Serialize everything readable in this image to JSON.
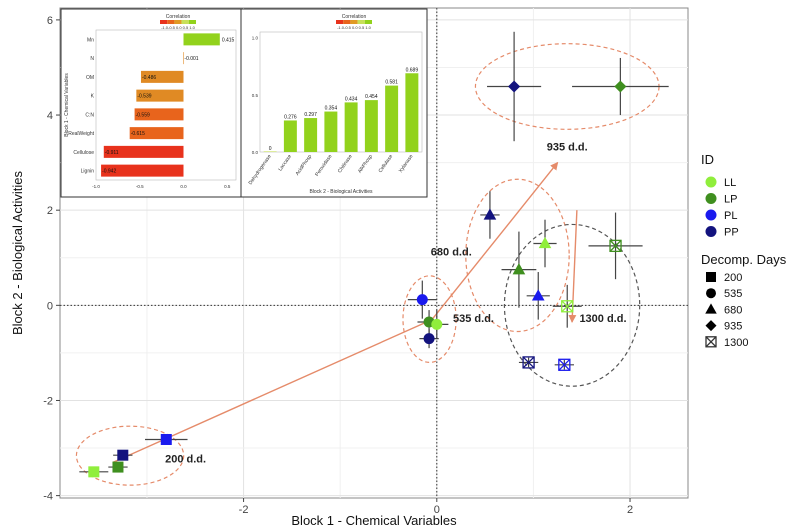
{
  "chart_data": {
    "type": "scatter",
    "xlabel": "Block 1 - Chemical Variables",
    "ylabel": "Block 2 - Biological Activities",
    "xlim": [
      -3.9,
      2.6
    ],
    "ylim": [
      -4.05,
      6.25
    ],
    "x_ticks": [
      -2,
      0,
      2
    ],
    "y_ticks": [
      -4,
      -2,
      0,
      2,
      4,
      6
    ],
    "grid": true,
    "reference_lines": {
      "x": 0,
      "y": 0
    },
    "colors": {
      "LL": "#90ee3c",
      "LP": "#3f8f1f",
      "PL": "#1a1aee",
      "PP": "#13137e",
      "trajectory": "#e58b6a",
      "panel_bg": "#ffffff",
      "frame": "#888888"
    },
    "legend": {
      "position": "right",
      "id_title": "ID",
      "id_entries": [
        "LL",
        "LP",
        "PL",
        "PP"
      ],
      "shape_title": "Decomp. Days",
      "shape_entries": [
        {
          "label": "200",
          "marker": "square"
        },
        {
          "label": "535",
          "marker": "circle"
        },
        {
          "label": "680",
          "marker": "triangle"
        },
        {
          "label": "935",
          "marker": "diamond"
        },
        {
          "label": "1300",
          "marker": "boxed-x"
        }
      ]
    },
    "points": [
      {
        "id": "LL",
        "day": "200",
        "x": -3.55,
        "y": -3.5,
        "xerr": 0.15,
        "yerr": 0.06
      },
      {
        "id": "LP",
        "day": "200",
        "x": -3.3,
        "y": -3.4,
        "xerr": 0.1,
        "yerr": 0.06
      },
      {
        "id": "PP",
        "day": "200",
        "x": -3.25,
        "y": -3.15,
        "xerr": 0.1,
        "yerr": 0.06
      },
      {
        "id": "PL",
        "day": "200",
        "x": -2.8,
        "y": -2.82,
        "xerr": 0.22,
        "yerr": 0.06
      },
      {
        "id": "PL",
        "day": "535",
        "x": -0.15,
        "y": 0.12,
        "xerr": 0.15,
        "yerr": 0.4
      },
      {
        "id": "LP",
        "day": "535",
        "x": -0.08,
        "y": -0.35,
        "xerr": 0.12,
        "yerr": 0.25
      },
      {
        "id": "LL",
        "day": "535",
        "x": 0.0,
        "y": -0.4,
        "xerr": 0.12,
        "yerr": 0.3
      },
      {
        "id": "PP",
        "day": "535",
        "x": -0.08,
        "y": -0.7,
        "xerr": 0.1,
        "yerr": 0.2
      },
      {
        "id": "PP",
        "day": "680",
        "x": 0.55,
        "y": 1.9,
        "xerr": 0.1,
        "yerr": 0.5
      },
      {
        "id": "LP",
        "day": "680",
        "x": 0.85,
        "y": 0.75,
        "xerr": 0.18,
        "yerr": 0.8
      },
      {
        "id": "LL",
        "day": "680",
        "x": 1.12,
        "y": 1.3,
        "xerr": 0.12,
        "yerr": 0.5
      },
      {
        "id": "PL",
        "day": "680",
        "x": 1.05,
        "y": 0.2,
        "xerr": 0.12,
        "yerr": 0.5
      },
      {
        "id": "PP",
        "day": "935",
        "x": 0.8,
        "y": 4.6,
        "xerr": 0.28,
        "yerr": 1.15
      },
      {
        "id": "LP",
        "day": "935",
        "x": 1.9,
        "y": 4.6,
        "xerr": 0.5,
        "yerr": 0.6
      },
      {
        "id": "LL",
        "day": "1300",
        "x": 1.35,
        "y": -0.02,
        "xerr": 0.15,
        "yerr": 0.45
      },
      {
        "id": "LP",
        "day": "1300",
        "x": 1.85,
        "y": 1.25,
        "xerr": 0.28,
        "yerr": 0.7
      },
      {
        "id": "PL",
        "day": "1300",
        "x": 1.32,
        "y": -1.25,
        "xerr": 0.1,
        "yerr": 0.1
      },
      {
        "id": "PP",
        "day": "1300",
        "x": 0.95,
        "y": -1.2,
        "xerr": 0.1,
        "yerr": 0.1
      }
    ],
    "trajectory": [
      {
        "from": [
          -3.35,
          -3.3
        ],
        "to": [
          -0.05,
          -0.3
        ]
      },
      {
        "from": [
          -0.05,
          -0.3
        ],
        "to": [
          1.25,
          3.0
        ]
      },
      {
        "from": [
          1.45,
          2.0
        ],
        "to": [
          1.4,
          -0.35
        ]
      }
    ],
    "group_labels": [
      {
        "text": "200 d.d.",
        "x": -2.6,
        "y": -3.3
      },
      {
        "text": "535 d.d.",
        "x": 0.38,
        "y": -0.35
      },
      {
        "text": "680 d.d.",
        "x": 0.15,
        "y": 1.05
      },
      {
        "text": "935 d.d.",
        "x": 1.35,
        "y": 3.25
      },
      {
        "text": "1300 d.d.",
        "x": 1.72,
        "y": -0.35
      }
    ],
    "insets": [
      {
        "type": "bar",
        "orientation": "horizontal",
        "ylabel": "Block 1 - Chemical Variables",
        "legend_title": "Correlation",
        "legend_scale": "-1.0-0.5 0.0 0.5 1.0",
        "x_ticks": [
          "-1.0",
          "-0.5",
          "0.0",
          "0.5"
        ],
        "xlim": [
          -1.0,
          0.6
        ],
        "categories": [
          "Mn",
          "N",
          "OM",
          "K",
          "C:N",
          "RealWeight",
          "Cellulose",
          "Lignin"
        ],
        "values": [
          0.415,
          -0.001,
          -0.486,
          -0.539,
          -0.559,
          -0.615,
          -0.911,
          -0.942
        ],
        "value_labels": [
          "0.415",
          "-0.001",
          "-0.486",
          "-0.539",
          "-0.559",
          "-0.615",
          "-0.911",
          "-0.942"
        ]
      },
      {
        "type": "bar",
        "orientation": "vertical",
        "xlabel": "Block 2 - Biological Activities",
        "legend_title": "Correlation",
        "legend_scale": "-1.0-0.5 0.0 0.5 1.0",
        "y_ticks": [
          "0.0",
          "0.5",
          "1.0"
        ],
        "ylim": [
          0,
          1.05
        ],
        "categories": [
          "Dehydrogenase",
          "Laccase",
          "AcidPhosp",
          "Peroxidase",
          "Chitinase",
          "AlkPhosp",
          "Cellulase",
          "Xylanase"
        ],
        "values": [
          0,
          0.276,
          0.297,
          0.354,
          0.434,
          0.454,
          0.581,
          0.689
        ],
        "value_labels": [
          "0",
          "0.276",
          "0.297",
          "0.354",
          "0.434",
          "0.454",
          "0.581",
          "0.689"
        ]
      }
    ]
  }
}
